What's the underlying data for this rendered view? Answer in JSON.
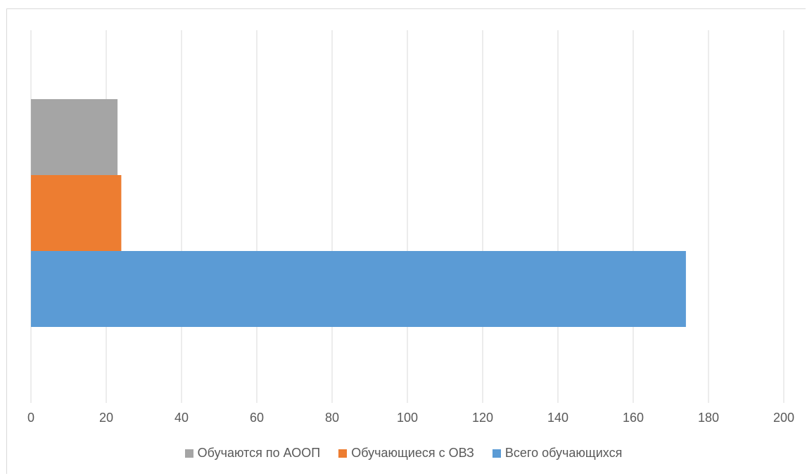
{
  "chart_data": {
    "type": "bar",
    "orientation": "horizontal",
    "categories": [
      ""
    ],
    "series": [
      {
        "name": "Всего обучающихся",
        "values": [
          174
        ],
        "color": "#5b9bd5"
      },
      {
        "name": "Обучающиеся с ОВЗ",
        "values": [
          24
        ],
        "color": "#ed7d31"
      },
      {
        "name": "Обучаются по АООП",
        "values": [
          23
        ],
        "color": "#a5a5a5"
      }
    ],
    "legend_order": [
      "Обучаются по АООП",
      "Обучающиеся с ОВЗ",
      "Всего обучающихся"
    ],
    "xlim": [
      0,
      200
    ],
    "x_ticks": [
      "0",
      "20",
      "40",
      "60",
      "80",
      "100",
      "120",
      "140",
      "160",
      "180",
      "200"
    ],
    "grid": true,
    "legend_position": "bottom",
    "title": "",
    "xlabel": "",
    "ylabel": ""
  }
}
